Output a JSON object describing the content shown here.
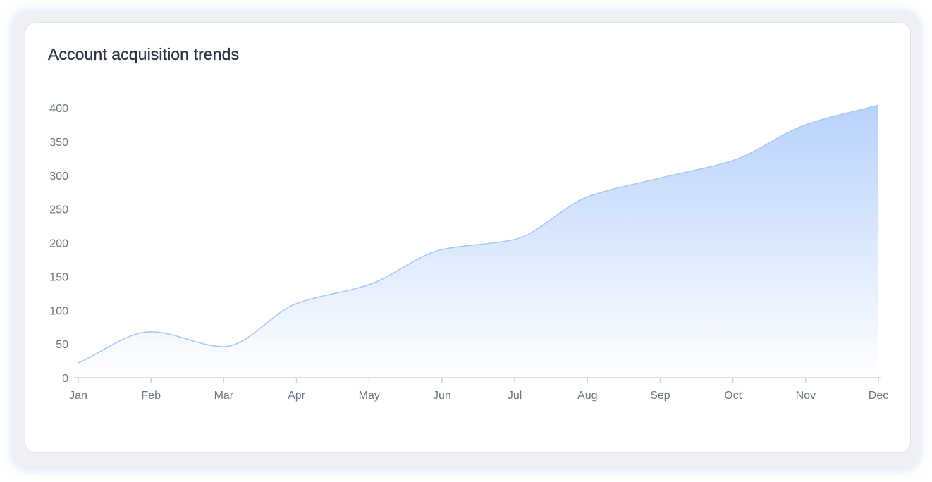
{
  "chart_data": {
    "type": "area",
    "title": "Account acquisition trends",
    "xlabel": "",
    "ylabel": "",
    "categories": [
      "Jan",
      "Feb",
      "Mar",
      "Apr",
      "May",
      "Jun",
      "Jul",
      "Aug",
      "Sep",
      "Oct",
      "Nov",
      "Dec"
    ],
    "series": [
      {
        "values": [
          22,
          68,
          46,
          110,
          138,
          190,
          205,
          268,
          296,
          322,
          375,
          404
        ]
      }
    ],
    "y_ticks": [
      0,
      50,
      100,
      150,
      200,
      250,
      300,
      350,
      400
    ],
    "ylim": [
      0,
      400
    ],
    "grid": false,
    "legend": "none",
    "colors": {
      "line": "#a9c6f3",
      "fill_top": "#b8d1fb",
      "fill_bottom": "#ffffff",
      "axis": "#cfd5df",
      "tick_text": "#6b7482",
      "title_text": "#2b3442"
    }
  }
}
